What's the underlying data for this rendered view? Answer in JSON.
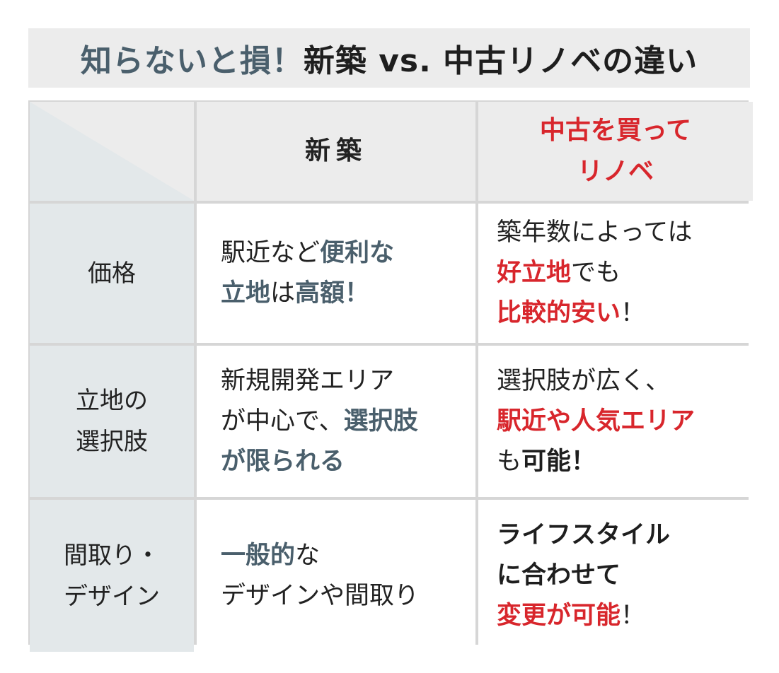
{
  "title": {
    "accent": "知らないと損！",
    "main": "新築 vs. 中古リノベの違い"
  },
  "header": {
    "col_new": "新築",
    "col_reno_line1": "中古を買って",
    "col_reno_line2": "リノベ"
  },
  "rows": [
    {
      "label_lines": [
        "価格"
      ],
      "new_lines": [
        [
          {
            "t": "駅近など",
            "s": "plain"
          },
          {
            "t": "便利な",
            "s": "blue"
          }
        ],
        [
          {
            "t": "立地",
            "s": "blue"
          },
          {
            "t": "は",
            "s": "plain"
          },
          {
            "t": "高額！",
            "s": "blue"
          }
        ]
      ],
      "reno_lines": [
        [
          {
            "t": "築年数によっては",
            "s": "plain"
          }
        ],
        [
          {
            "t": "好立地",
            "s": "red"
          },
          {
            "t": "でも",
            "s": "plain"
          }
        ],
        [
          {
            "t": "比較的安い",
            "s": "red"
          },
          {
            "t": "！",
            "s": "plain"
          }
        ]
      ]
    },
    {
      "label_lines": [
        "立地の",
        "選択肢"
      ],
      "new_lines": [
        [
          {
            "t": "新規開発エリア",
            "s": "plain"
          }
        ],
        [
          {
            "t": "が中心で、",
            "s": "plain"
          },
          {
            "t": "選択肢",
            "s": "blue"
          }
        ],
        [
          {
            "t": "が限られる",
            "s": "blue"
          }
        ]
      ],
      "reno_lines": [
        [
          {
            "t": "選択肢が広く、",
            "s": "plain"
          }
        ],
        [
          {
            "t": "駅近や人気エリア",
            "s": "red"
          }
        ],
        [
          {
            "t": "も",
            "s": "plain"
          },
          {
            "t": "可能！",
            "s": "black"
          }
        ]
      ]
    },
    {
      "label_lines": [
        "間取り・",
        "デザイン"
      ],
      "new_lines": [
        [
          {
            "t": "一般的",
            "s": "blue"
          },
          {
            "t": "な",
            "s": "plain"
          }
        ],
        [
          {
            "t": "デザインや間取り",
            "s": "plain"
          }
        ]
      ],
      "reno_lines": [
        [
          {
            "t": "ライフスタイル",
            "s": "black"
          }
        ],
        [
          {
            "t": "に合わせて",
            "s": "black"
          }
        ],
        [
          {
            "t": "変更が可能",
            "s": "red"
          },
          {
            "t": "！",
            "s": "plain"
          }
        ]
      ]
    }
  ],
  "colors": {
    "accent_blue": "#4a5f6c",
    "accent_red": "#d8262c",
    "grid": "#d6d6d6",
    "header_bg": "#ececec",
    "rowhead_bg": "#e3e8ea"
  }
}
